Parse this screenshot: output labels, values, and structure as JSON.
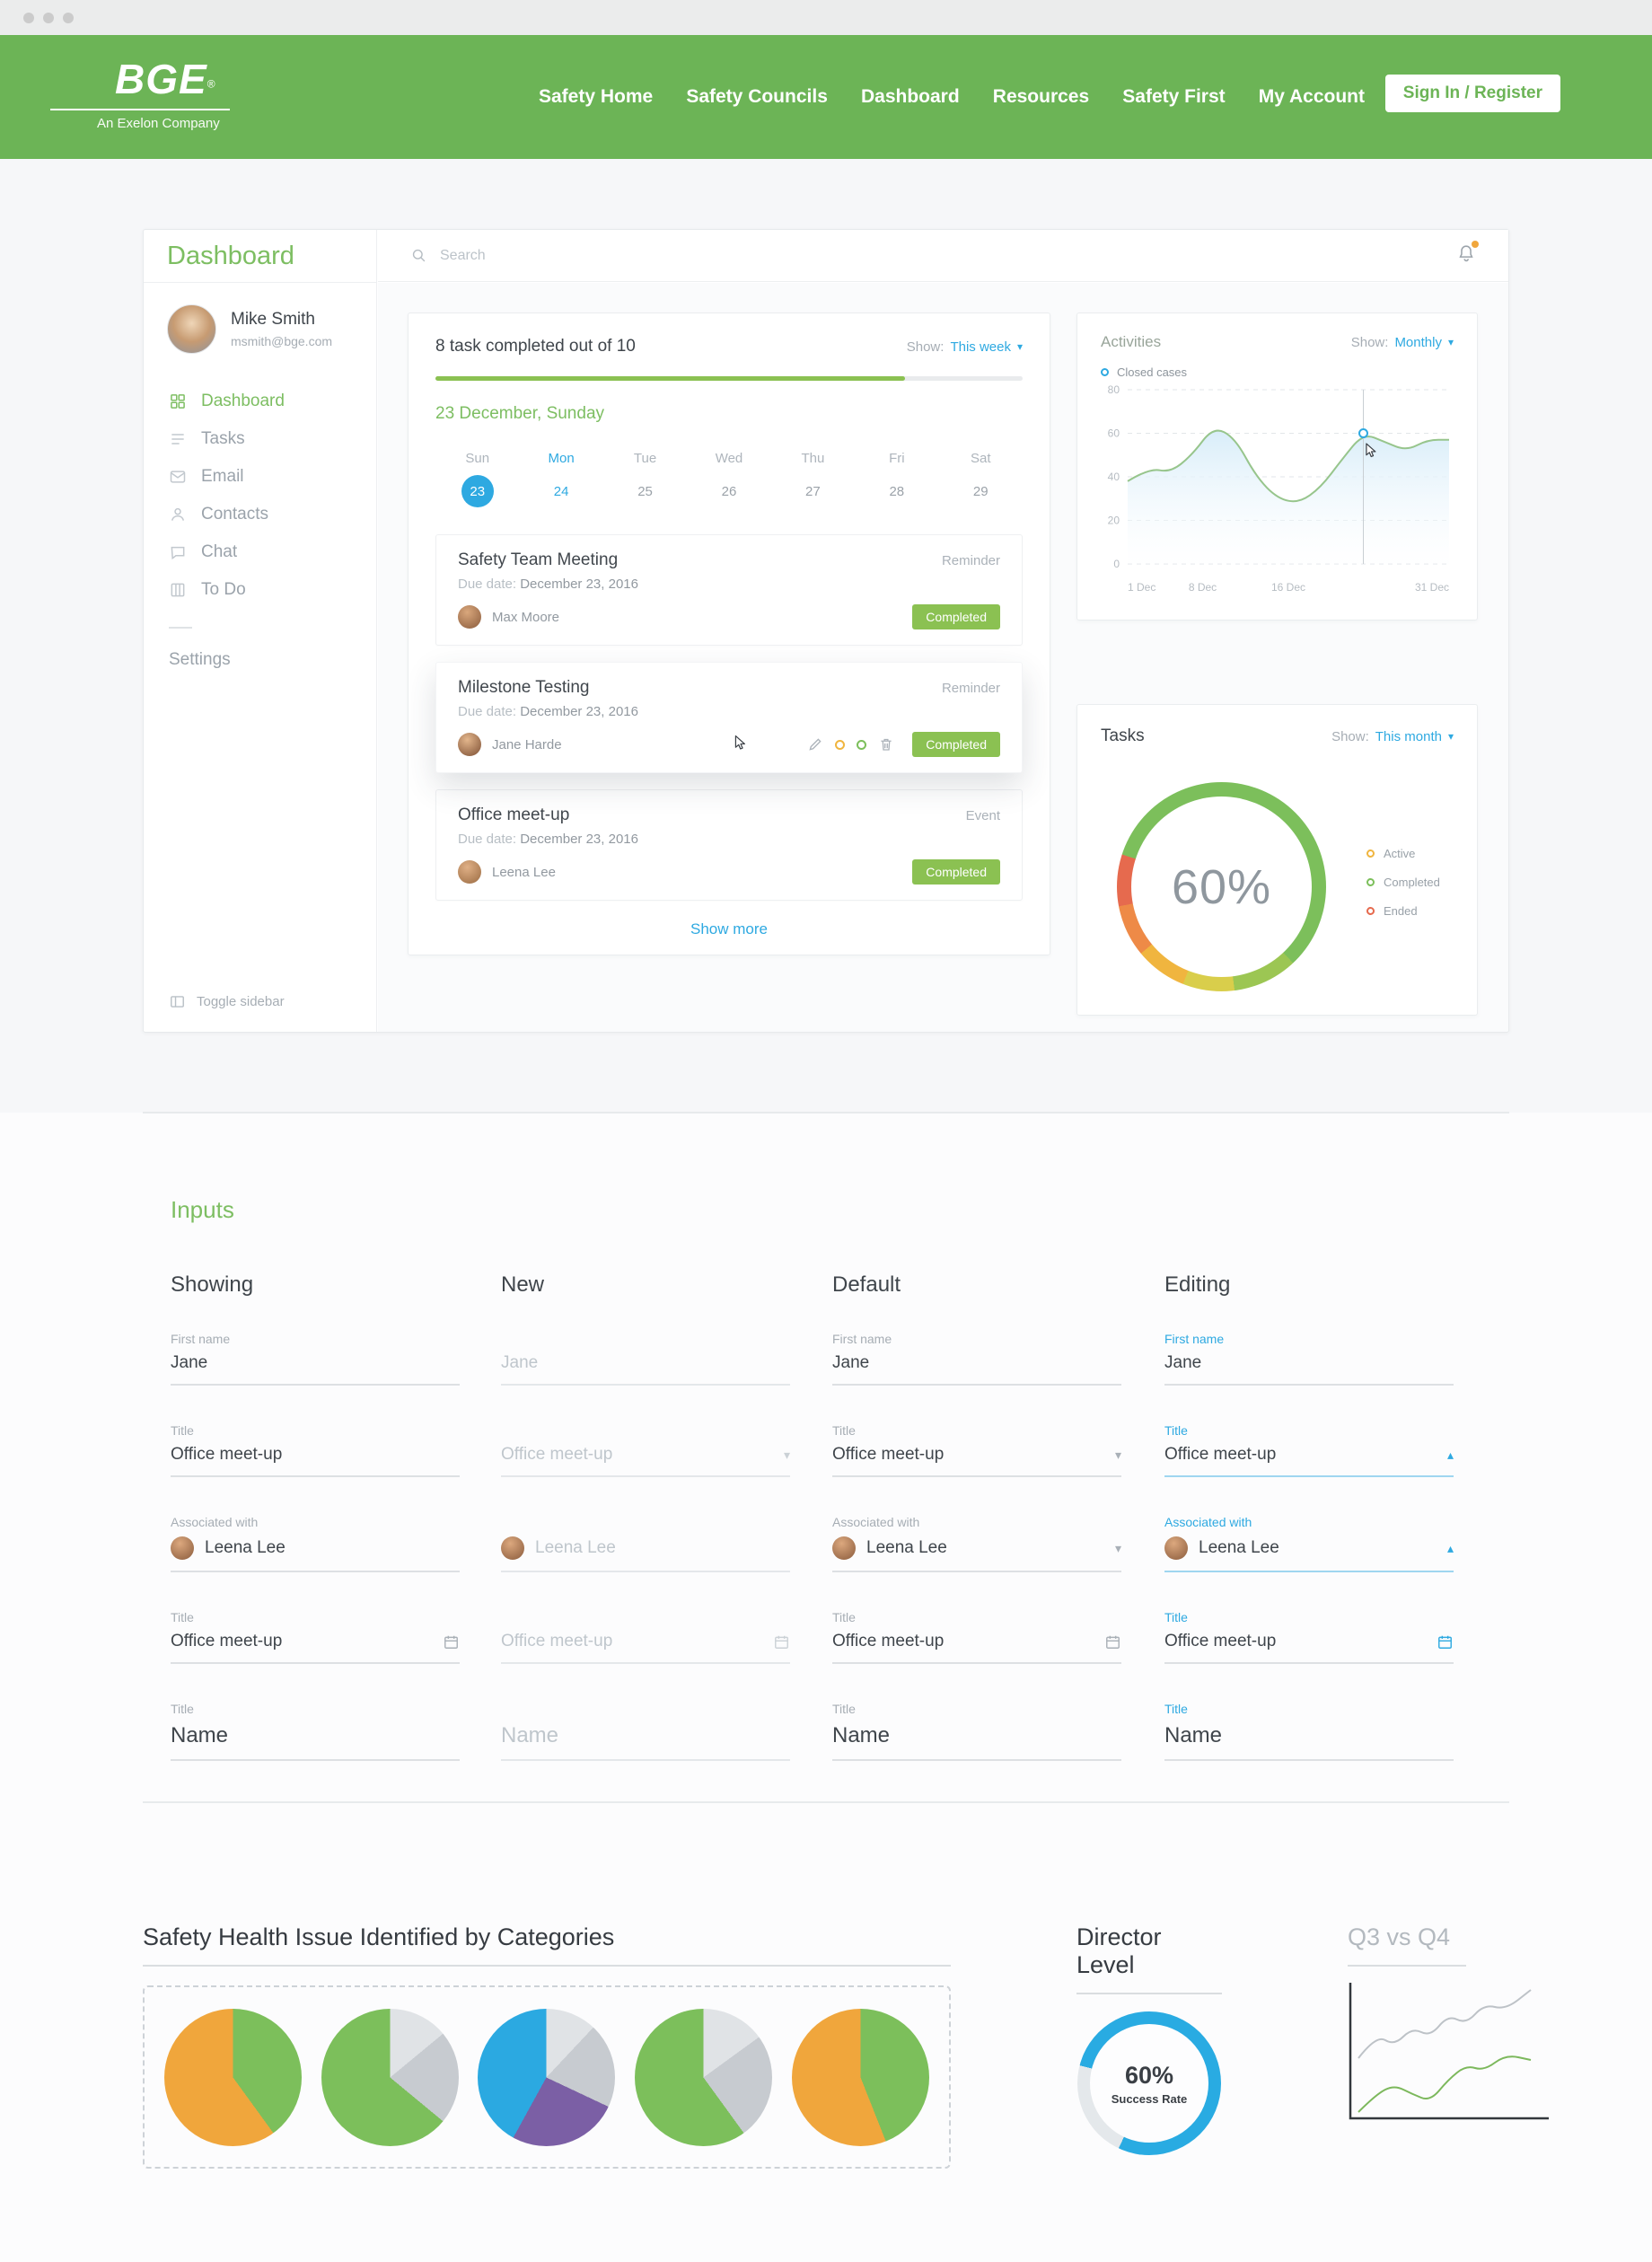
{
  "colors": {
    "brand-green": "#6CB456",
    "accent-green": "#7DBE62",
    "accent-blue": "#2EA9E1",
    "badge-green": "#8BC152",
    "status-active": "#F0B53F",
    "status-completed": "#7CBF5B",
    "status-ended": "#E66A4E"
  },
  "header": {
    "logo_title": "BGE",
    "logo_reg": "®",
    "logo_sub": "An Exelon Company",
    "nav": [
      {
        "label": "Safety Home"
      },
      {
        "label": "Safety Councils"
      },
      {
        "label": "Dashboard"
      },
      {
        "label": "Resources"
      },
      {
        "label": "Safety First"
      },
      {
        "label": "My Account"
      }
    ],
    "signin_label": "Sign In / Register"
  },
  "dashboard": {
    "title": "Dashboard",
    "user": {
      "name": "Mike Smith",
      "email": "msmith@bge.com"
    },
    "menu": [
      {
        "label": "Dashboard",
        "icon": "grid",
        "active": true
      },
      {
        "label": "Tasks",
        "icon": "list",
        "active": false
      },
      {
        "label": "Email",
        "icon": "mail",
        "active": false
      },
      {
        "label": "Contacts",
        "icon": "person",
        "active": false
      },
      {
        "label": "Chat",
        "icon": "chat",
        "active": false
      },
      {
        "label": "To Do",
        "icon": "todo",
        "active": false
      }
    ],
    "settings_label": "Settings",
    "toggle_label": "Toggle sidebar",
    "search_placeholder": "Search",
    "progress": {
      "label": "8 task completed out of 10",
      "completed": 8,
      "total": 10,
      "percent": 80,
      "show_label": "Show:",
      "show_value": "This week",
      "date": "23 December, Sunday",
      "days": [
        {
          "dow": "Sun",
          "date": "23",
          "state": "selected"
        },
        {
          "dow": "Mon",
          "date": "24",
          "state": "highlight"
        },
        {
          "dow": "Tue",
          "date": "25",
          "state": ""
        },
        {
          "dow": "Wed",
          "date": "26",
          "state": ""
        },
        {
          "dow": "Thu",
          "date": "27",
          "state": ""
        },
        {
          "dow": "Fri",
          "date": "28",
          "state": ""
        },
        {
          "dow": "Sat",
          "date": "29",
          "state": ""
        }
      ]
    },
    "tasks": [
      {
        "title": "Safety Team Meeting",
        "type": "Reminder",
        "due_label": "Due date:",
        "due": "December 23, 2016",
        "assignee": "Max Moore",
        "status": "Completed",
        "state": "normal",
        "has_actions": false
      },
      {
        "title": "Milestone Testing",
        "type": "Reminder",
        "due_label": "Due date:",
        "due": "December 23, 2016",
        "assignee": "Jane Harde",
        "status": "Completed",
        "state": "hover",
        "has_actions": true
      },
      {
        "title": "Office meet-up",
        "type": "Event",
        "due_label": "Due date:",
        "due": "December 23, 2016",
        "assignee": "Leena Lee",
        "status": "Completed",
        "state": "normal",
        "has_actions": false
      }
    ],
    "show_more": "Show more",
    "activities": {
      "title": "Activities",
      "show_label": "Show:",
      "show_value": "Monthly",
      "legend_label": "Closed cases",
      "chart_data": {
        "type": "area",
        "x": [
          1,
          3,
          5,
          7,
          9,
          11,
          13,
          15,
          17,
          19,
          21,
          23,
          25,
          27,
          29,
          31
        ],
        "y": [
          38,
          44,
          42,
          50,
          63,
          58,
          40,
          30,
          28,
          35,
          48,
          60,
          56,
          52,
          57,
          57
        ],
        "xlim": [
          1,
          31
        ],
        "ylim": [
          0,
          80
        ],
        "yticks": [
          0,
          20,
          40,
          60,
          80
        ],
        "xticks": [
          {
            "day": 1,
            "label": "1 Dec"
          },
          {
            "day": 8,
            "label": "8 Dec"
          },
          {
            "day": 16,
            "label": "16 Dec"
          },
          {
            "day": 31,
            "label": "31 Dec"
          }
        ],
        "marker": {
          "x": 23,
          "y": 60
        },
        "line_color": "#97C58C",
        "fill_color": "#D8EDF9"
      }
    },
    "tasks_widget": {
      "title": "Tasks",
      "show_label": "Show:",
      "show_value": "This month",
      "percent": "60%",
      "donut_segments": [
        {
          "color": "#7CBF5B",
          "pct": 38
        },
        {
          "color": "#9CC653",
          "pct": 10
        },
        {
          "color": "#D9CE4B",
          "pct": 8
        },
        {
          "color": "#F0B53F",
          "pct": 8
        },
        {
          "color": "#EE8A47",
          "pct": 8
        },
        {
          "color": "#E66A4E",
          "pct": 8
        },
        {
          "color": "#7CBF5B",
          "pct": 20
        }
      ],
      "legend": [
        {
          "label": "Active",
          "color": "#F0B53F"
        },
        {
          "label": "Completed",
          "color": "#7CBF5B"
        },
        {
          "label": "Ended",
          "color": "#E66A4E"
        }
      ]
    }
  },
  "inputs": {
    "heading": "Inputs",
    "columns": [
      {
        "title": "Showing",
        "state": "showing",
        "fields": [
          {
            "label": "First name",
            "value": "Jane",
            "control": "none"
          },
          {
            "label": "Title",
            "value": "Office meet-up",
            "control": "none"
          },
          {
            "label": "Associated with",
            "value": "Leena Lee",
            "control": "none",
            "avatar": true
          },
          {
            "label": "Title",
            "value": "Office meet-up",
            "control": "calendar"
          },
          {
            "label": "Title",
            "value": "Name",
            "control": "none",
            "size": "large"
          }
        ]
      },
      {
        "title": "New",
        "state": "new",
        "fields": [
          {
            "label": "",
            "value": "Jane",
            "control": "none"
          },
          {
            "label": "",
            "value": "Office meet-up",
            "control": "select"
          },
          {
            "label": "",
            "value": "Leena Lee",
            "control": "none",
            "avatar": true
          },
          {
            "label": "",
            "value": "Office meet-up",
            "control": "calendar"
          },
          {
            "label": "",
            "value": "Name",
            "control": "none",
            "size": "large"
          }
        ]
      },
      {
        "title": "Default",
        "state": "default",
        "fields": [
          {
            "label": "First name",
            "value": "Jane",
            "control": "none"
          },
          {
            "label": "Title",
            "value": "Office meet-up",
            "control": "select"
          },
          {
            "label": "Associated with",
            "value": "Leena Lee",
            "control": "select",
            "avatar": true
          },
          {
            "label": "Title",
            "value": "Office meet-up",
            "control": "calendar"
          },
          {
            "label": "Title",
            "value": "Name",
            "control": "none",
            "size": "large"
          }
        ]
      },
      {
        "title": "Editing",
        "state": "editing",
        "fields": [
          {
            "label": "First name",
            "value": "Jane",
            "control": "none"
          },
          {
            "label": "Title",
            "value": "Office meet-up",
            "control": "select-open"
          },
          {
            "label": "Associated with",
            "value": "Leena Lee",
            "control": "select-open",
            "avatar": true
          },
          {
            "label": "Title",
            "value": "Office meet-up",
            "control": "calendar"
          },
          {
            "label": "Title",
            "value": "Name",
            "control": "none",
            "size": "large"
          }
        ]
      }
    ]
  },
  "bottom": {
    "pies": {
      "title": "Safety Health Issue Identified by Categories",
      "charts": [
        {
          "slices": [
            {
              "color": "#7CBF5B",
              "pct": 40
            },
            {
              "color": "#F0A63C",
              "pct": 60
            }
          ]
        },
        {
          "slices": [
            {
              "color": "#E0E3E6",
              "pct": 14
            },
            {
              "color": "#C7CBD0",
              "pct": 22
            },
            {
              "color": "#7CBF5B",
              "pct": 64
            }
          ]
        },
        {
          "slices": [
            {
              "color": "#E0E3E6",
              "pct": 12
            },
            {
              "color": "#C7CBD0",
              "pct": 20
            },
            {
              "color": "#7B5FA5",
              "pct": 26
            },
            {
              "color": "#2BA9E1",
              "pct": 42
            }
          ]
        },
        {
          "slices": [
            {
              "color": "#E0E3E6",
              "pct": 15
            },
            {
              "color": "#C7CBD0",
              "pct": 25
            },
            {
              "color": "#7CBF5B",
              "pct": 60
            }
          ]
        },
        {
          "slices": [
            {
              "color": "#7CBF5B",
              "pct": 44
            },
            {
              "color": "#F0A63C",
              "pct": 56
            }
          ]
        }
      ]
    },
    "director": {
      "title": "Director Level",
      "percent": "60%",
      "sub": "Success Rate",
      "donut_segments": [
        {
          "color": "#29ABE2",
          "pct": 57
        },
        {
          "color": "#E4E8EB",
          "pct": 22
        },
        {
          "color": "#29ABE2",
          "pct": 21
        }
      ]
    },
    "q3q4": {
      "title": "Q3 vs Q4",
      "chart_data": {
        "type": "line",
        "axis_color": "#33383D",
        "series": [
          {
            "name": "Q3",
            "color": "#BDC2C7",
            "points": [
              [
                12,
                86
              ],
              [
                32,
                60
              ],
              [
                52,
                72
              ],
              [
                72,
                52
              ],
              [
                92,
                62
              ],
              [
                112,
                38
              ],
              [
                132,
                48
              ],
              [
                152,
                26
              ],
              [
                176,
                32
              ],
              [
                204,
                10
              ]
            ]
          },
          {
            "name": "Q4",
            "color": "#7CB85C",
            "points": [
              [
                12,
                146
              ],
              [
                32,
                126
              ],
              [
                52,
                116
              ],
              [
                72,
                126
              ],
              [
                92,
                134
              ],
              [
                112,
                110
              ],
              [
                132,
                94
              ],
              [
                152,
                100
              ],
              [
                176,
                82
              ],
              [
                204,
                88
              ]
            ]
          }
        ]
      }
    }
  }
}
